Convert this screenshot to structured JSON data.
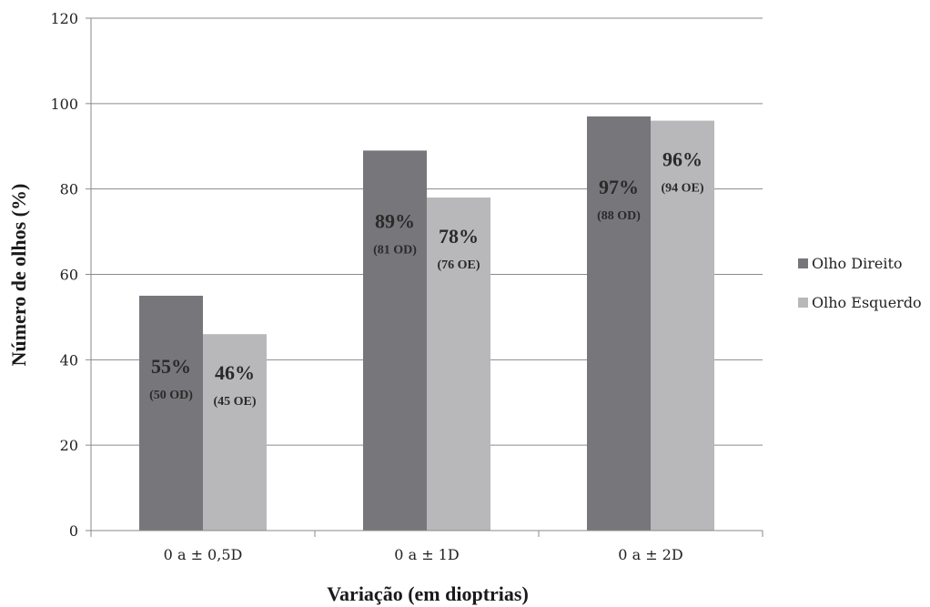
{
  "chart_data": {
    "type": "bar",
    "categories": [
      "0 a ± 0,5D",
      "0 a ± 1D",
      "0 a ± 2D"
    ],
    "series": [
      {
        "name": "Olho Direito",
        "values": [
          55,
          89,
          97
        ],
        "color": "#77777b",
        "labels": [
          "55%",
          "89%",
          "97%"
        ],
        "sublabels": [
          "(50 OD)",
          "(81 OD)",
          "(88 OD)"
        ]
      },
      {
        "name": "Olho Esquerdo",
        "values": [
          46,
          78,
          96
        ],
        "color": "#b8b8bb",
        "labels": [
          "46%",
          "78%",
          "96%"
        ],
        "sublabels": [
          "(45 OE)",
          "(76 OE)",
          "(94 OE)"
        ]
      }
    ],
    "xlabel": "Variação (em dioptrias)",
    "ylabel": "Número de olhos (%)",
    "ylim": [
      0,
      120
    ],
    "yticks": [
      0,
      20,
      40,
      60,
      80,
      100,
      120
    ],
    "grid": true,
    "legend": "right"
  }
}
